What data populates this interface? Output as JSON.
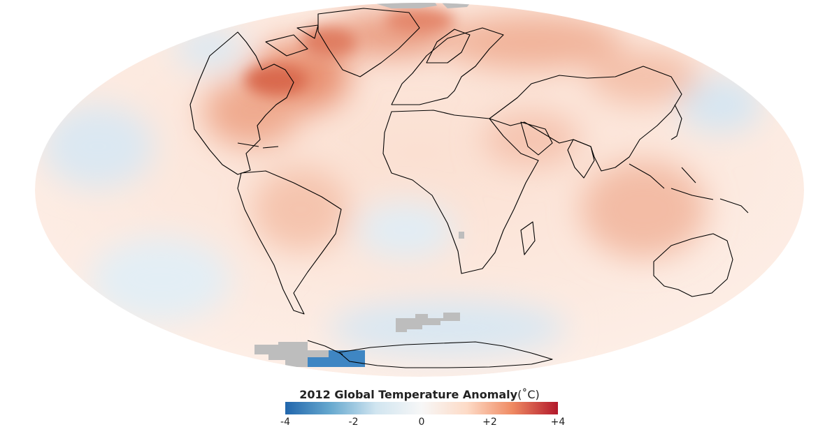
{
  "legend": {
    "title": "2012 Global Temperature Anomaly",
    "unit": "(˚C)",
    "min": -4,
    "max": 4,
    "ticks": [
      {
        "value": -4,
        "label": "-4"
      },
      {
        "value": -2,
        "label": "-2"
      },
      {
        "value": 0,
        "label": "0"
      },
      {
        "value": 2,
        "label": "+2"
      },
      {
        "value": 4,
        "label": "+4"
      }
    ],
    "colors": {
      "cold_dark": "#2166ac",
      "cold": "#67a9cf",
      "cool": "#d1e5f0",
      "neutral": "#f7f7f7",
      "warm": "#fddbc7",
      "hot": "#ef8a62",
      "hot_dark": "#b2182b"
    }
  },
  "map": {
    "projection": "Mollweide",
    "no_data_color": "#bdbdbd",
    "coastline_color": "#000000"
  }
}
